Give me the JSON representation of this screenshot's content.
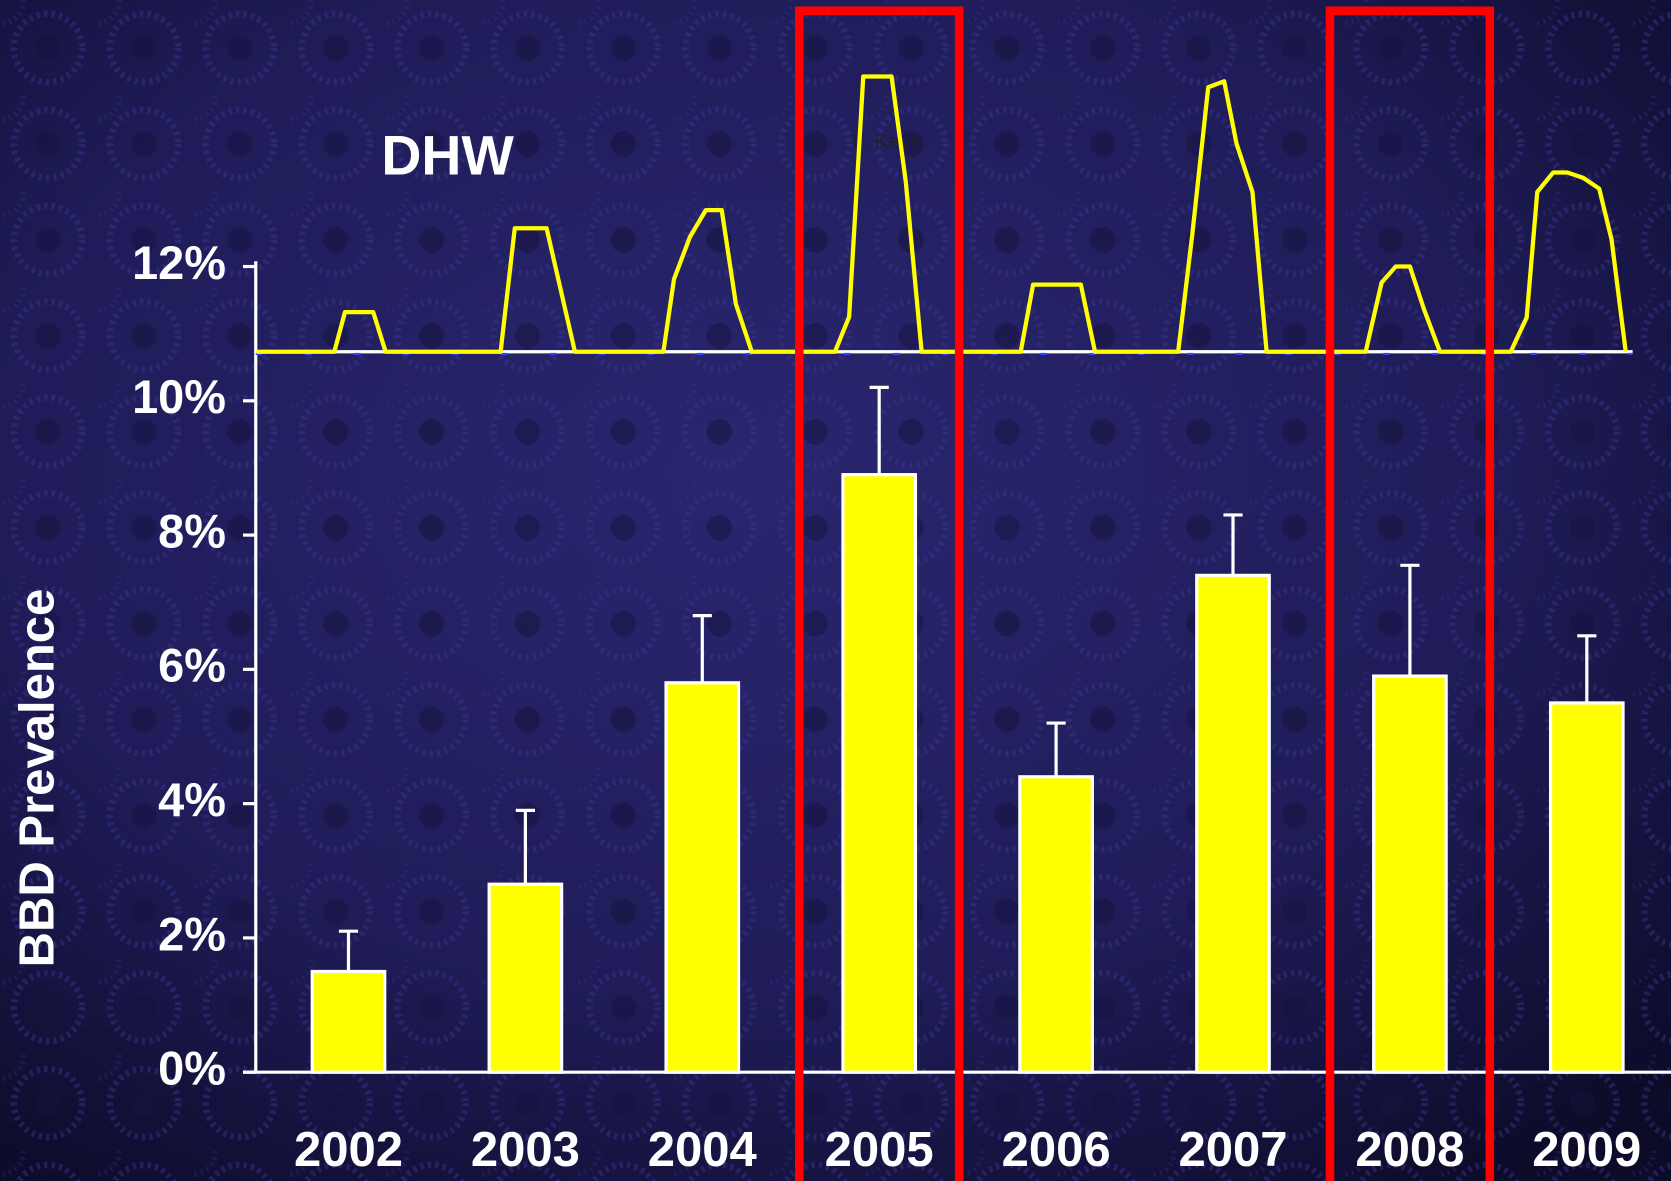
{
  "chart_data": {
    "type": "bar",
    "y_label": "BBD Prevalence",
    "categories": [
      "2002",
      "2003",
      "2004",
      "2005",
      "2006",
      "2007",
      "2008",
      "2009"
    ],
    "values": [
      1.5,
      2.8,
      5.8,
      8.9,
      4.4,
      7.4,
      5.9,
      5.5
    ],
    "errors": [
      0.6,
      1.1,
      1.0,
      1.3,
      0.8,
      0.9,
      1.65,
      1.0
    ],
    "color": "#ffff00",
    "ylim": [
      0,
      12
    ],
    "yticks": [
      {
        "value": 0,
        "label": "0%"
      },
      {
        "value": 2,
        "label": "2%"
      },
      {
        "value": 4,
        "label": "4%"
      },
      {
        "value": 6,
        "label": "6%"
      },
      {
        "value": 8,
        "label": "8%"
      },
      {
        "value": 10,
        "label": "10%"
      },
      {
        "value": 12,
        "label": "12%"
      }
    ],
    "highlight": [
      3,
      6
    ],
    "highlight_color": "#ff0000",
    "dhw": {
      "label": "DHW",
      "note": "F. Keys",
      "color": "#ffff00",
      "x": [
        2001.98,
        2002.42,
        2002.48,
        2002.64,
        2002.71,
        2003.36,
        2003.44,
        2003.62,
        2003.78,
        2004.28,
        2004.34,
        2004.43,
        2004.52,
        2004.61,
        2004.69,
        2004.78,
        2005.25,
        2005.33,
        2005.41,
        2005.57,
        2005.65,
        2005.74,
        2006.3,
        2006.37,
        2006.64,
        2006.72,
        2007.19,
        2007.27,
        2007.36,
        2007.45,
        2007.52,
        2007.61,
        2007.69,
        2008.25,
        2008.34,
        2008.42,
        2008.5,
        2008.58,
        2008.67,
        2009.07,
        2009.16,
        2009.22,
        2009.31,
        2009.39,
        2009.48,
        2009.57,
        2009.64,
        2009.72
      ],
      "values": [
        0,
        0,
        0.59,
        0.59,
        0,
        0,
        1.84,
        1.84,
        0,
        0,
        1.08,
        1.71,
        2.11,
        2.11,
        0.71,
        0,
        0,
        0.52,
        4.1,
        4.1,
        2.54,
        0,
        0,
        1.0,
        1.0,
        0,
        0,
        1.75,
        3.94,
        4.03,
        3.1,
        2.38,
        0,
        0,
        1.03,
        1.27,
        1.27,
        0.63,
        0,
        0,
        0.51,
        2.38,
        2.67,
        2.67,
        2.59,
        2.43,
        1.67,
        0
      ]
    }
  }
}
